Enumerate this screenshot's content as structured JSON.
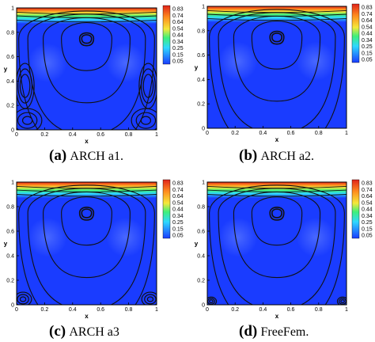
{
  "figure": {
    "colorbar_levels": [
      "0.83",
      "0.74",
      "0.64",
      "0.54",
      "0.44",
      "0.34",
      "0.25",
      "0.15",
      "0.05"
    ],
    "colors": {
      "low": "#1a3cff",
      "mid": "#2fd8ff",
      "green": "#3ef07a",
      "yellow": "#f5e83a",
      "orange": "#ff8c1e",
      "high": "#e0231a",
      "streamline": "#111111",
      "glow": "#6f8cff"
    },
    "panels": [
      {
        "tag": "(a)",
        "text": "ARCH a1.",
        "corner_eddies": "large",
        "wall_eddies": true
      },
      {
        "tag": "(b)",
        "text": "ARCH a2.",
        "corner_eddies": "none",
        "wall_eddies": false
      },
      {
        "tag": "(c)",
        "text": "ARCH a3",
        "corner_eddies": "small",
        "wall_eddies": false
      },
      {
        "tag": "(d)",
        "text": "FreeFem.",
        "corner_eddies": "tiny",
        "wall_eddies": false
      }
    ]
  },
  "chart_data": [
    {
      "type": "heatmap",
      "xlabel": "x",
      "ylabel": "y",
      "xlim": [
        0,
        1
      ],
      "ylim": [
        0,
        1
      ],
      "x_ticks": [
        "0",
        "0.2",
        "0.4",
        "0.6",
        "0.8",
        "1"
      ],
      "y_ticks": [
        "0",
        "0.2",
        "0.4",
        "0.6",
        "0.8",
        "1"
      ],
      "legend_levels": [
        0.83,
        0.74,
        0.64,
        0.54,
        0.44,
        0.34,
        0.25,
        0.15,
        0.05
      ],
      "legend_position": "right",
      "vortex_center": [
        0.5,
        0.75
      ],
      "secondary_eddies": [
        "bottom-left",
        "bottom-right",
        "left-wall",
        "right-wall"
      ]
    },
    {
      "type": "heatmap",
      "xlabel": "x",
      "ylabel": "y",
      "xlim": [
        0,
        1
      ],
      "ylim": [
        0,
        1
      ],
      "x_ticks": [
        "0",
        "0.2",
        "0.4",
        "0.6",
        "0.8",
        "1"
      ],
      "y_ticks": [
        "0",
        "0.2",
        "0.4",
        "0.6",
        "0.8",
        "1"
      ],
      "legend_levels": [
        0.83,
        0.74,
        0.64,
        0.54,
        0.44,
        0.34,
        0.25,
        0.15,
        0.05
      ],
      "legend_position": "right",
      "vortex_center": [
        0.5,
        0.75
      ],
      "secondary_eddies": []
    },
    {
      "type": "heatmap",
      "xlabel": "x",
      "ylabel": "y",
      "xlim": [
        0,
        1
      ],
      "ylim": [
        0,
        1
      ],
      "x_ticks": [
        "0",
        "0.2",
        "0.4",
        "0.6",
        "0.8",
        "1"
      ],
      "y_ticks": [
        "0",
        "0.2",
        "0.4",
        "0.6",
        "0.8",
        "1"
      ],
      "legend_levels": [
        0.83,
        0.74,
        0.64,
        0.54,
        0.44,
        0.34,
        0.25,
        0.15,
        0.05
      ],
      "legend_position": "right",
      "vortex_center": [
        0.5,
        0.75
      ],
      "secondary_eddies": [
        "bottom-left",
        "bottom-right"
      ]
    },
    {
      "type": "heatmap",
      "xlabel": "x",
      "ylabel": "y",
      "xlim": [
        0,
        1
      ],
      "ylim": [
        0,
        1
      ],
      "x_ticks": [
        "0",
        "0.2",
        "0.4",
        "0.6",
        "0.8",
        "1"
      ],
      "y_ticks": [
        "0",
        "0.2",
        "0.4",
        "0.6",
        "0.8",
        "1"
      ],
      "legend_levels": [
        0.83,
        0.74,
        0.64,
        0.54,
        0.44,
        0.34,
        0.25,
        0.15,
        0.05
      ],
      "legend_position": "right",
      "vortex_center": [
        0.5,
        0.75
      ],
      "secondary_eddies": [
        "bottom-left",
        "bottom-right"
      ]
    }
  ]
}
